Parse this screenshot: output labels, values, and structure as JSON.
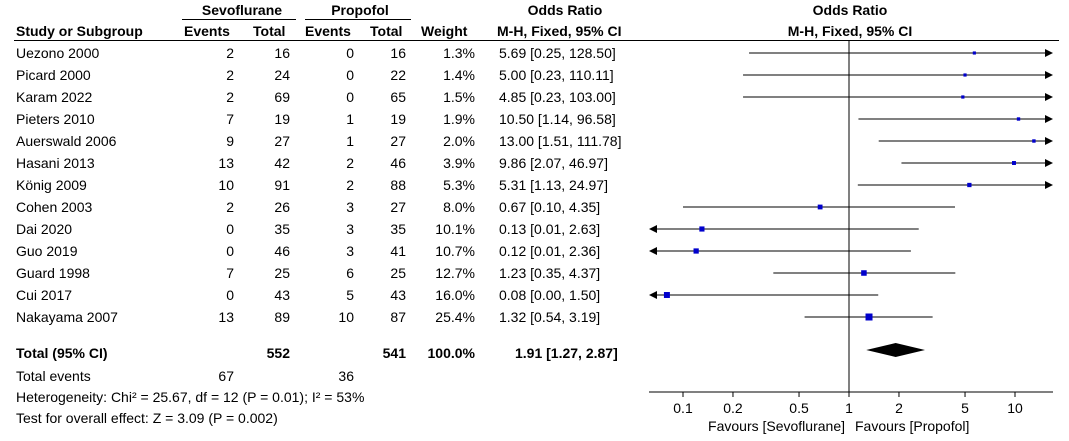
{
  "header": {
    "group1": "Sevoflurane",
    "group2": "Propofol",
    "or_title": "Odds Ratio",
    "plot_title": "Odds Ratio",
    "col_study": "Study or Subgroup",
    "col_events1": "Events",
    "col_total1": "Total",
    "col_events2": "Events",
    "col_total2": "Total",
    "col_weight": "Weight",
    "col_method": "M-H, Fixed, 95% CI",
    "plot_method": "M-H, Fixed, 95% CI"
  },
  "studies": [
    {
      "name": "Uezono 2000",
      "e1": "2",
      "t1": "16",
      "e2": "0",
      "t2": "16",
      "weight": "1.3%",
      "ci": "5.69 [0.25, 128.50]"
    },
    {
      "name": "Picard 2000",
      "e1": "2",
      "t1": "24",
      "e2": "0",
      "t2": "22",
      "weight": "1.4%",
      "ci": "5.00 [0.23, 110.11]"
    },
    {
      "name": "Karam 2022",
      "e1": "2",
      "t1": "69",
      "e2": "0",
      "t2": "65",
      "weight": "1.5%",
      "ci": "4.85 [0.23, 103.00]"
    },
    {
      "name": "Pieters 2010",
      "e1": "7",
      "t1": "19",
      "e2": "1",
      "t2": "19",
      "weight": "1.9%",
      "ci": "10.50 [1.14, 96.58]"
    },
    {
      "name": "Auerswald 2006",
      "e1": "9",
      "t1": "27",
      "e2": "1",
      "t2": "27",
      "weight": "2.0%",
      "ci": "13.00 [1.51, 111.78]"
    },
    {
      "name": "Hasani 2013",
      "e1": "13",
      "t1": "42",
      "e2": "2",
      "t2": "46",
      "weight": "3.9%",
      "ci": "9.86 [2.07, 46.97]"
    },
    {
      "name": "König 2009",
      "e1": "10",
      "t1": "91",
      "e2": "2",
      "t2": "88",
      "weight": "5.3%",
      "ci": "5.31 [1.13, 24.97]"
    },
    {
      "name": "Cohen 2003",
      "e1": "2",
      "t1": "26",
      "e2": "3",
      "t2": "27",
      "weight": "8.0%",
      "ci": "0.67 [0.10, 4.35]"
    },
    {
      "name": "Dai 2020",
      "e1": "0",
      "t1": "35",
      "e2": "3",
      "t2": "35",
      "weight": "10.1%",
      "ci": "0.13 [0.01, 2.63]"
    },
    {
      "name": "Guo 2019",
      "e1": "0",
      "t1": "46",
      "e2": "3",
      "t2": "41",
      "weight": "10.7%",
      "ci": "0.12 [0.01, 2.36]"
    },
    {
      "name": "Guard 1998",
      "e1": "7",
      "t1": "25",
      "e2": "6",
      "t2": "25",
      "weight": "12.7%",
      "ci": "1.23 [0.35, 4.37]"
    },
    {
      "name": "Cui 2017",
      "e1": "0",
      "t1": "43",
      "e2": "5",
      "t2": "43",
      "weight": "16.0%",
      "ci": "0.08 [0.00, 1.50]"
    },
    {
      "name": "Nakayama 2007",
      "e1": "13",
      "t1": "89",
      "e2": "10",
      "t2": "87",
      "weight": "25.4%",
      "ci": "1.32 [0.54, 3.19]"
    }
  ],
  "total": {
    "label": "Total (95% CI)",
    "t1": "552",
    "t2": "541",
    "weight": "100.0%",
    "ci": "1.91 [1.27, 2.87]",
    "events_label": "Total events",
    "events1": "67",
    "events2": "36"
  },
  "footer": {
    "heterogeneity": "Heterogeneity: Chi² = 25.67, df = 12 (P = 0.01); I² = 53%",
    "overall": "Test for overall effect: Z = 3.09 (P = 0.002)"
  },
  "chart_data": {
    "type": "forest",
    "title": "Odds Ratio",
    "subtitle": "M-H, Fixed, 95% CI",
    "scale": "log",
    "xlim": [
      0.05,
      20
    ],
    "null_value": 1,
    "ticks": [
      0.1,
      0.2,
      0.5,
      1,
      2,
      5,
      10
    ],
    "tick_labels": [
      "0.1",
      "0.2",
      "0.5",
      "1",
      "2",
      "5",
      "10"
    ],
    "xlabel_left": "Favours [Sevoflurane]",
    "xlabel_right": "Favours [Propofol]",
    "marker_color": "#0000cc",
    "diamond_color": "#000000",
    "studies": [
      {
        "name": "Uezono 2000",
        "or": 5.69,
        "lo": 0.25,
        "hi": 128.5,
        "weight": 1.3
      },
      {
        "name": "Picard 2000",
        "or": 5.0,
        "lo": 0.23,
        "hi": 110.11,
        "weight": 1.4
      },
      {
        "name": "Karam 2022",
        "or": 4.85,
        "lo": 0.23,
        "hi": 103.0,
        "weight": 1.5
      },
      {
        "name": "Pieters 2010",
        "or": 10.5,
        "lo": 1.14,
        "hi": 96.58,
        "weight": 1.9
      },
      {
        "name": "Auerswald 2006",
        "or": 13.0,
        "lo": 1.51,
        "hi": 111.78,
        "weight": 2.0
      },
      {
        "name": "Hasani 2013",
        "or": 9.86,
        "lo": 2.07,
        "hi": 46.97,
        "weight": 3.9
      },
      {
        "name": "König 2009",
        "or": 5.31,
        "lo": 1.13,
        "hi": 24.97,
        "weight": 5.3
      },
      {
        "name": "Cohen 2003",
        "or": 0.67,
        "lo": 0.1,
        "hi": 4.35,
        "weight": 8.0
      },
      {
        "name": "Dai 2020",
        "or": 0.13,
        "lo": 0.01,
        "hi": 2.63,
        "weight": 10.1
      },
      {
        "name": "Guo 2019",
        "or": 0.12,
        "lo": 0.01,
        "hi": 2.36,
        "weight": 10.7
      },
      {
        "name": "Guard 1998",
        "or": 1.23,
        "lo": 0.35,
        "hi": 4.37,
        "weight": 12.7
      },
      {
        "name": "Cui 2017",
        "or": 0.08,
        "lo": 0.0,
        "hi": 1.5,
        "weight": 16.0
      },
      {
        "name": "Nakayama 2007",
        "or": 1.32,
        "lo": 0.54,
        "hi": 3.19,
        "weight": 25.4
      }
    ],
    "pooled": {
      "or": 1.91,
      "lo": 1.27,
      "hi": 2.87
    }
  }
}
